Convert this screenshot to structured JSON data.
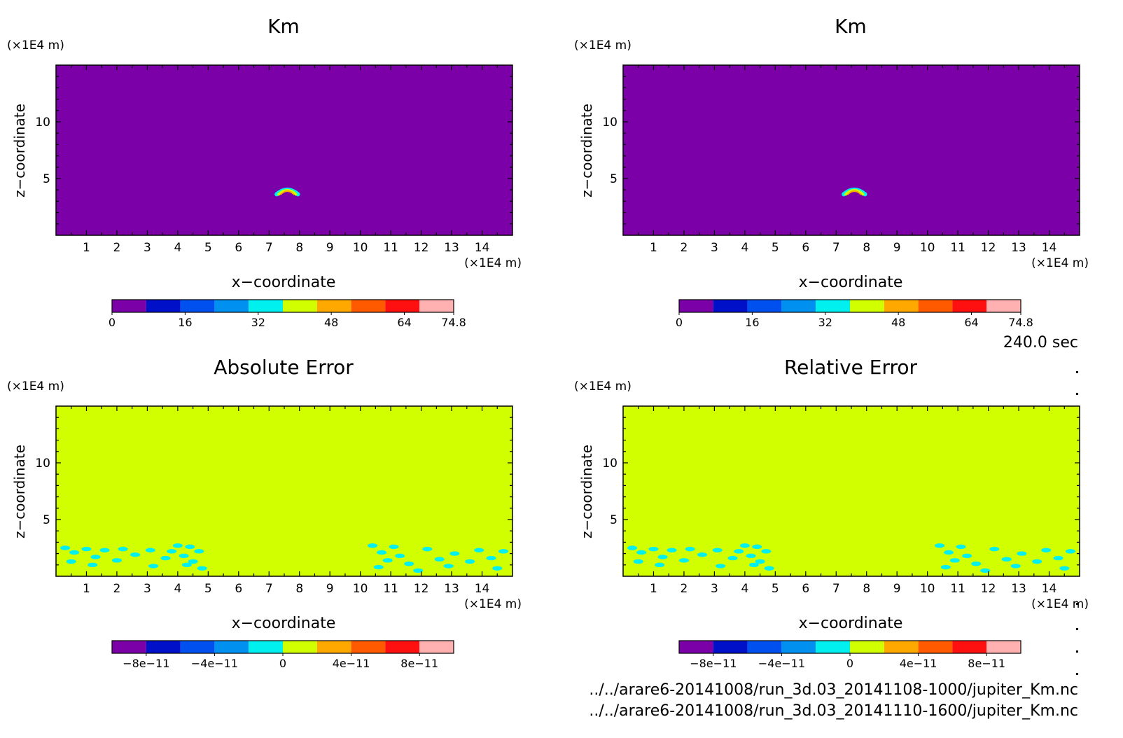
{
  "time_label": "240.0 sec",
  "files": [
    "../../arare6-20141008/run_3d.03_20141108-1000/jupiter_Km.nc",
    "../../arare6-20141008/run_3d.03_20141110-1600/jupiter_Km.nc"
  ],
  "colors": {
    "levels": [
      "#7b00a8",
      "#0010c8",
      "#0050f0",
      "#0090f0",
      "#00f0f0",
      "#d2ff00",
      "#ffa800",
      "#ff5a00",
      "#ff1010",
      "#ffb0b0"
    ],
    "background": "#ffffff"
  },
  "chart_data": [
    {
      "type": "heatmap",
      "title": "Km",
      "xlabel": "x−coordinate",
      "ylabel": "z−coordinate",
      "x_unit": "(×1E4 m)",
      "y_unit": "(×1E4 m)",
      "xlim": [
        0,
        15
      ],
      "ylim": [
        0,
        15
      ],
      "xticks": [
        1,
        2,
        3,
        4,
        5,
        6,
        7,
        8,
        9,
        10,
        11,
        12,
        13,
        14
      ],
      "yticks": [
        5,
        10
      ],
      "field_level": 0,
      "colorbar": {
        "ticks": [
          "0",
          "16",
          "32",
          "48",
          "64",
          "74.8"
        ],
        "range": [
          0,
          74.8
        ]
      },
      "features": [
        {
          "kind": "arc",
          "x_center": 7.6,
          "z": 3.8,
          "halfwidth": 0.35,
          "levels": [
            4,
            5,
            6
          ]
        }
      ]
    },
    {
      "type": "heatmap",
      "title": "Km",
      "xlabel": "x−coordinate",
      "ylabel": "z−coordinate",
      "x_unit": "(×1E4 m)",
      "y_unit": "(×1E4 m)",
      "xlim": [
        0,
        15
      ],
      "ylim": [
        0,
        15
      ],
      "xticks": [
        1,
        2,
        3,
        4,
        5,
        6,
        7,
        8,
        9,
        10,
        11,
        12,
        13,
        14
      ],
      "yticks": [
        5,
        10
      ],
      "field_level": 0,
      "colorbar": {
        "ticks": [
          "0",
          "16",
          "32",
          "48",
          "64",
          "74.8"
        ],
        "range": [
          0,
          74.8
        ]
      },
      "features": [
        {
          "kind": "arc",
          "x_center": 7.6,
          "z": 3.8,
          "halfwidth": 0.35,
          "levels": [
            4,
            5,
            6
          ]
        }
      ]
    },
    {
      "type": "heatmap",
      "title": "Absolute Error",
      "xlabel": "x−coordinate",
      "ylabel": "z−coordinate",
      "x_unit": "(×1E4 m)",
      "y_unit": "(×1E4 m)",
      "xlim": [
        0,
        15
      ],
      "ylim": [
        0,
        15
      ],
      "xticks": [
        1,
        2,
        3,
        4,
        5,
        6,
        7,
        8,
        9,
        10,
        11,
        12,
        13,
        14
      ],
      "yticks": [
        5,
        10
      ],
      "field_level": 5,
      "colorbar": {
        "ticks": [
          "−8e−11",
          "−4e−11",
          "0",
          "4e−11",
          "8e−11"
        ],
        "range": [
          -1e-10,
          1e-10
        ]
      },
      "features": [
        {
          "kind": "patches",
          "level": 4,
          "points": [
            [
              0.3,
              2.5
            ],
            [
              0.6,
              2.1
            ],
            [
              1.0,
              2.4
            ],
            [
              1.3,
              1.7
            ],
            [
              1.6,
              2.3
            ],
            [
              2.2,
              2.4
            ],
            [
              2.6,
              1.9
            ],
            [
              3.1,
              2.3
            ],
            [
              3.6,
              1.6
            ],
            [
              3.8,
              2.2
            ],
            [
              4.0,
              2.7
            ],
            [
              4.2,
              1.8
            ],
            [
              4.4,
              2.6
            ],
            [
              4.5,
              1.3
            ],
            [
              4.7,
              2.2
            ],
            [
              4.8,
              0.7
            ],
            [
              0.5,
              1.3
            ],
            [
              1.2,
              1.0
            ],
            [
              2.0,
              1.4
            ],
            [
              3.2,
              0.9
            ],
            [
              4.3,
              1.0
            ],
            [
              10.4,
              2.7
            ],
            [
              10.7,
              2.1
            ],
            [
              10.9,
              1.4
            ],
            [
              11.1,
              2.6
            ],
            [
              11.3,
              1.8
            ],
            [
              11.6,
              1.1
            ],
            [
              10.6,
              0.8
            ],
            [
              12.2,
              2.4
            ],
            [
              12.6,
              1.5
            ],
            [
              13.1,
              2.0
            ],
            [
              13.6,
              1.3
            ],
            [
              13.9,
              2.3
            ],
            [
              14.3,
              1.6
            ],
            [
              14.7,
              2.2
            ],
            [
              14.5,
              0.7
            ],
            [
              12.9,
              0.9
            ],
            [
              11.9,
              0.5
            ]
          ]
        }
      ]
    },
    {
      "type": "heatmap",
      "title": "Relative Error",
      "xlabel": "x−coordinate",
      "ylabel": "z−coordinate",
      "x_unit": "(×1E4 m)",
      "y_unit": "(×1E4 m)",
      "xlim": [
        0,
        15
      ],
      "ylim": [
        0,
        15
      ],
      "xticks": [
        1,
        2,
        3,
        4,
        5,
        6,
        7,
        8,
        9,
        10,
        11,
        12,
        13,
        14
      ],
      "yticks": [
        5,
        10
      ],
      "field_level": 5,
      "colorbar": {
        "ticks": [
          "−8e−11",
          "−4e−11",
          "0",
          "4e−11",
          "8e−11"
        ],
        "range": [
          -1e-10,
          1e-10
        ]
      },
      "features": [
        {
          "kind": "patches",
          "level": 4,
          "points": [
            [
              0.3,
              2.5
            ],
            [
              0.6,
              2.1
            ],
            [
              1.0,
              2.4
            ],
            [
              1.3,
              1.7
            ],
            [
              1.6,
              2.3
            ],
            [
              2.2,
              2.4
            ],
            [
              2.6,
              1.9
            ],
            [
              3.1,
              2.3
            ],
            [
              3.6,
              1.6
            ],
            [
              3.8,
              2.2
            ],
            [
              4.0,
              2.7
            ],
            [
              4.2,
              1.8
            ],
            [
              4.4,
              2.6
            ],
            [
              4.5,
              1.3
            ],
            [
              4.7,
              2.2
            ],
            [
              4.8,
              0.7
            ],
            [
              0.5,
              1.3
            ],
            [
              1.2,
              1.0
            ],
            [
              2.0,
              1.4
            ],
            [
              3.2,
              0.9
            ],
            [
              4.3,
              1.0
            ],
            [
              10.4,
              2.7
            ],
            [
              10.7,
              2.1
            ],
            [
              10.9,
              1.4
            ],
            [
              11.1,
              2.6
            ],
            [
              11.3,
              1.8
            ],
            [
              11.6,
              1.1
            ],
            [
              10.6,
              0.8
            ],
            [
              12.2,
              2.4
            ],
            [
              12.6,
              1.5
            ],
            [
              13.1,
              2.0
            ],
            [
              13.6,
              1.3
            ],
            [
              13.9,
              2.3
            ],
            [
              14.3,
              1.6
            ],
            [
              14.7,
              2.2
            ],
            [
              14.5,
              0.7
            ],
            [
              12.9,
              0.9
            ],
            [
              11.9,
              0.5
            ]
          ]
        }
      ]
    }
  ]
}
